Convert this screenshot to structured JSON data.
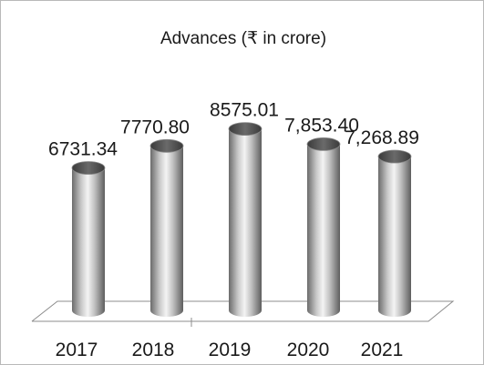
{
  "chart_data": {
    "type": "bar",
    "title": "Advances  (₹ in crore)",
    "xlabel": "",
    "ylabel": "",
    "categories": [
      "2017",
      "2018",
      "2019",
      "2020",
      "2021"
    ],
    "values": [
      6731.34,
      7770.8,
      8575.01,
      7853.4,
      7268.89
    ],
    "data_labels": [
      "6731.34",
      "7770.80",
      "8575.01",
      "7,853.40",
      "7,268.89"
    ],
    "ylim": [
      0,
      10500
    ],
    "grid": false,
    "legend": "none",
    "bar_shape": "cylinder",
    "colors": {
      "bar_dark": "#6b6b6b",
      "bar_light": "#f4f4f4",
      "bar_top": "#4a4a4a",
      "floor_line": "#8c8c8c",
      "border": "#b9b9b9"
    }
  }
}
